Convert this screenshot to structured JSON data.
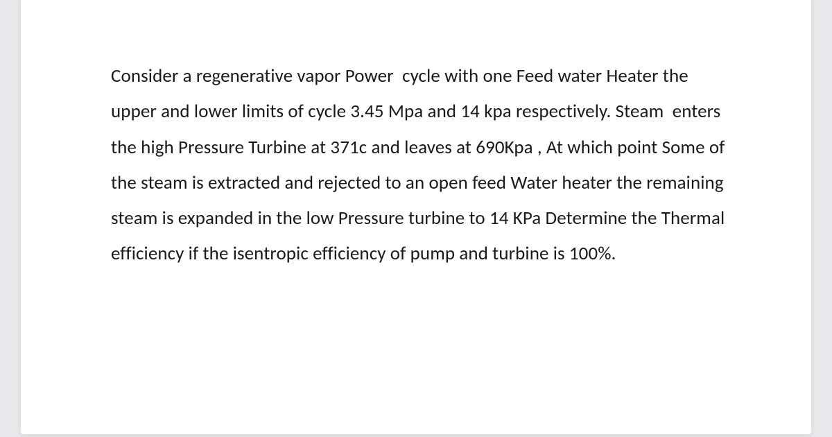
{
  "document": {
    "type": "text-block",
    "background_color": "#ffffff",
    "page_background": "#e8e8ea",
    "text_color": "#1a1a1a",
    "font_family": "Segoe UI / Calibri",
    "font_size_pt": 20,
    "line_height": 1.9,
    "problem_text": "Consider a regenerative vapor Power  cycle with one Feed water Heater the upper and lower limits of cycle 3.45 Mpa and 14 kpa respectively. Steam  enters the high Pressure Turbine at 371c and leaves at 690Kpa , At which point Some of the steam is extracted and rejected to an open feed Water heater the remaining steam is expanded in the low Pressure turbine to 14 KPa Determine the Thermal efficiency if the isentropic efficiency of pump and turbine is 100%."
  }
}
